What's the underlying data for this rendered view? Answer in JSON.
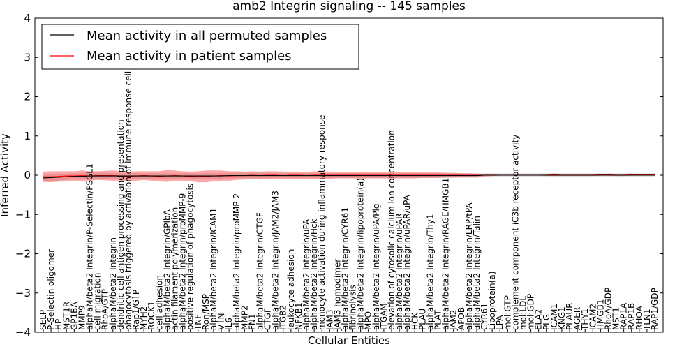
{
  "chart_data": {
    "type": "line",
    "title": "amb2 Integrin signaling -- 145 samples",
    "xlabel": "Cellular Entities",
    "ylabel": "Inferred Activity",
    "ylim": [
      -4,
      4
    ],
    "yticks": [
      -4,
      -3,
      -2,
      -1,
      0,
      1,
      2,
      3,
      4
    ],
    "grid": false,
    "legend_position": "top-left",
    "colors": {
      "permuted": "#000000",
      "patient": "#ff0000",
      "patient_band": "#ff0000",
      "permuted_band": "#aaaaaa"
    },
    "series": [
      {
        "name": "Mean activity in all permuted samples",
        "key": "permuted"
      },
      {
        "name": "Mean activity in patient samples",
        "key": "patient"
      }
    ],
    "categories": [
      "SELP",
      "P-Selectin oligomer",
      "HP",
      "MST1R",
      "GP1BA",
      "MMP9",
      "alphaM/beta2 Integrin/P-Selectin/PSGL1",
      "cell migration",
      "RhoA/GTP",
      "alphaM/beta2 Integrin",
      "dendritic cell antigen processing and presentation",
      "phagocytosis triggered by activation of immune response cell surface",
      "Rap1/GTP",
      "MYH2",
      "ROCK1",
      "cell adhesion",
      "alphaM/beta2 Integrin/GPIbA",
      "actin filament polymerization",
      "alphaM/beta2 Integrin/proMMP-9",
      "positive regulation of phagocytosis",
      "TNF",
      "Ron/MSP",
      "alphaM/beta2 Integrin/ICAM1",
      "VTN",
      "IL6",
      "alphaM/beta2 Integrin/proMMP-2",
      "MMP2",
      "FN1",
      "alphaM/beta2 Integrin/CTGF",
      "CTGF",
      "alphaM/beta2 Integrin/JAM2/JAM3",
      "ITGB2",
      "leukocyte adhesion",
      "NFKB1",
      "alphaM/beta2 Integrin/uPA",
      "alphaM/beta2 Integrin/Hck",
      "monocyte activation during inflammatory response",
      "JAM3",
      "JAM3 homodimer",
      "alphaM/beta2 Integrin/CYR61",
      "fibrinolysis",
      "alphaM/beta2 Integrin/lipoprotein(a)",
      "MPO",
      "alphaM/beta2 Integrin/uPA/Plg",
      "ITGAM",
      "elevation of cytosolic calcium ion concentration",
      "alphaM/beta2 Integrin/uPAR",
      "alphaM/beta2 Integrin/uPAR/uPA",
      "HCK",
      "PLAU",
      "alphaM/beta2 Integrin/Thy1",
      "PLAT",
      "alphaM/beta2 Integrin/RAGE/HMGB1",
      "JAM2",
      "APOB",
      "alphaM/beta2 Integrin/LRP/tPA",
      "alphaM/beta2 Integrin/Talin",
      "CYR61",
      "Lipoprotein(a)",
      "LPA",
      "mol:GTP",
      "complement component iC3b receptor activity",
      "mol:LDL",
      "mol:GDP",
      "ELA2",
      "PLG",
      "ICAM1",
      "KNG1",
      "PLAUR",
      "AGER",
      "THY1",
      "ICAM2",
      "HMGB1",
      "RhoA/GDP",
      "MST1",
      "RAP1A",
      "RAP1B",
      "RHOA",
      "TLN1",
      "RAP1/GDP"
    ],
    "permuted_mean": [
      -0.07,
      -0.06,
      -0.05,
      -0.04,
      -0.03,
      -0.03,
      -0.02,
      -0.02,
      -0.02,
      -0.02,
      -0.02,
      -0.02,
      -0.02,
      -0.02,
      -0.02,
      -0.02,
      -0.02,
      -0.02,
      -0.02,
      -0.02,
      -0.02,
      -0.02,
      -0.02,
      -0.02,
      -0.01,
      -0.01,
      -0.01,
      -0.01,
      -0.01,
      -0.01,
      -0.01,
      -0.01,
      -0.01,
      -0.01,
      -0.01,
      -0.01,
      -0.01,
      -0.01,
      -0.01,
      -0.01,
      -0.01,
      -0.01,
      -0.01,
      -0.01,
      -0.01,
      -0.01,
      -0.01,
      -0.01,
      -0.01,
      -0.01,
      -0.01,
      -0.01,
      -0.01,
      -0.01,
      -0.01,
      -0.01,
      -0.01,
      0,
      0,
      0,
      0,
      0,
      0,
      0,
      0,
      0,
      0,
      0,
      0,
      0,
      0,
      0,
      0,
      0,
      0,
      0,
      0,
      0,
      0,
      0
    ],
    "permuted_band": [
      0.09,
      0.09,
      0.09,
      0.08,
      0.08,
      0.08,
      0.08,
      0.08,
      0.08,
      0.07,
      0.07,
      0.07,
      0.07,
      0.07,
      0.07,
      0.07,
      0.07,
      0.07,
      0.07,
      0.07,
      0.07,
      0.07,
      0.07,
      0.07,
      0.07,
      0.07,
      0.07,
      0.07,
      0.07,
      0.07,
      0.06,
      0.06,
      0.06,
      0.06,
      0.06,
      0.06,
      0.06,
      0.06,
      0.06,
      0.06,
      0.06,
      0.06,
      0.06,
      0.06,
      0.06,
      0.06,
      0.06,
      0.06,
      0.06,
      0.06,
      0.06,
      0.06,
      0.06,
      0.06,
      0.06,
      0.06,
      0.06,
      0.05,
      0.05,
      0.05,
      0.05,
      0.05,
      0.05,
      0.05,
      0.05,
      0.05,
      0.05,
      0.05,
      0.05,
      0.05,
      0.05,
      0.05,
      0.05,
      0.05,
      0.05,
      0.05,
      0.05,
      0.05,
      0.05,
      0.05
    ],
    "patient_mean": [
      -0.04,
      -0.04,
      -0.03,
      -0.02,
      -0.02,
      -0.01,
      -0.02,
      -0.01,
      -0.01,
      -0.01,
      -0.02,
      -0.03,
      -0.02,
      -0.01,
      -0.02,
      -0.03,
      -0.02,
      -0.01,
      -0.02,
      -0.03,
      -0.04,
      -0.03,
      -0.02,
      -0.01,
      -0.02,
      -0.01,
      -0.01,
      0,
      -0.01,
      0,
      0,
      -0.01,
      0,
      0,
      -0.01,
      0,
      0,
      0,
      0,
      0,
      0,
      0,
      0,
      0,
      0,
      0,
      0,
      0,
      0,
      0,
      0,
      0,
      0,
      0,
      0,
      0,
      0,
      0,
      0,
      0,
      0,
      0,
      0,
      0,
      0,
      0,
      0.01,
      0,
      0,
      0,
      0,
      0,
      0.01,
      0.01,
      0,
      0,
      0.01,
      0.01,
      0.01,
      0.01
    ],
    "patient_band": [
      0.13,
      0.14,
      0.13,
      0.12,
      0.12,
      0.13,
      0.12,
      0.11,
      0.12,
      0.13,
      0.12,
      0.12,
      0.12,
      0.11,
      0.12,
      0.13,
      0.15,
      0.13,
      0.12,
      0.12,
      0.14,
      0.15,
      0.14,
      0.13,
      0.12,
      0.11,
      0.1,
      0.1,
      0.1,
      0.1,
      0.1,
      0.1,
      0.09,
      0.09,
      0.09,
      0.1,
      0.1,
      0.09,
      0.08,
      0.08,
      0.08,
      0.09,
      0.08,
      0.08,
      0.08,
      0.09,
      0.08,
      0.08,
      0.08,
      0.07,
      0.07,
      0.07,
      0.06,
      0.06,
      0.05,
      0.05,
      0.04,
      0.03,
      0.02,
      0.01,
      0.01,
      0.01,
      0.01,
      0.01,
      0.01,
      0.02,
      0.03,
      0.02,
      0.02,
      0.02,
      0.02,
      0.02,
      0.02,
      0.02,
      0.02,
      0.02,
      0.02,
      0.02,
      0.02,
      0.02
    ]
  }
}
